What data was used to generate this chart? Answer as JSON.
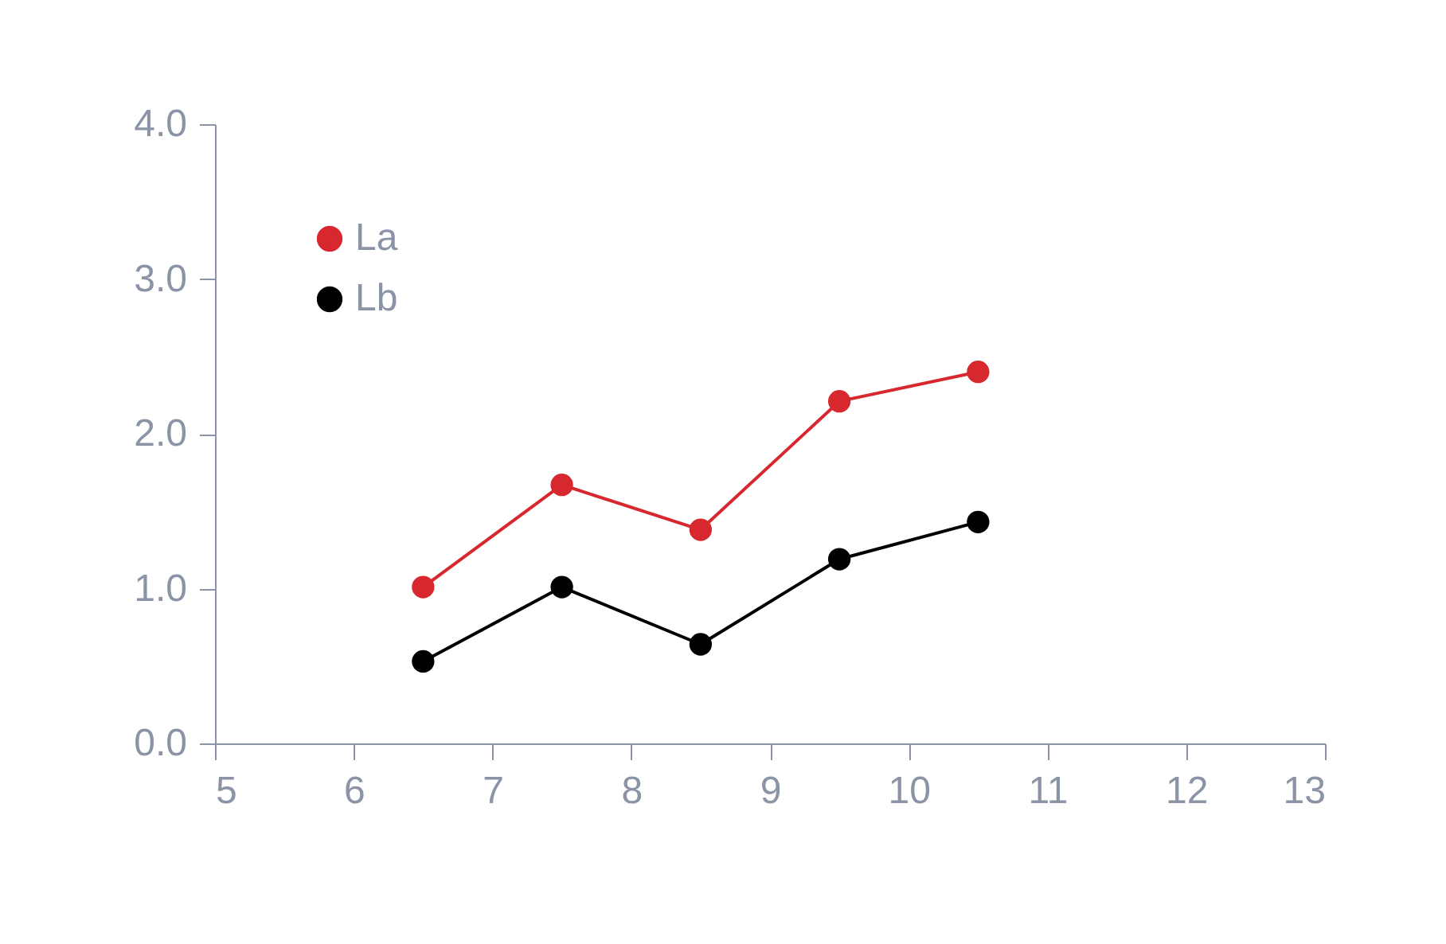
{
  "chart_data": {
    "type": "line",
    "x": [
      6.5,
      7.5,
      8.5,
      9.5,
      10.5
    ],
    "series": [
      {
        "name": "La",
        "color": "#d7282f",
        "values": [
          1.01,
          1.67,
          1.38,
          2.21,
          2.4
        ]
      },
      {
        "name": "Lb",
        "color": "#000000",
        "values": [
          0.53,
          1.01,
          0.64,
          1.19,
          1.43
        ]
      }
    ],
    "xlim": [
      5,
      13
    ],
    "xticks": [
      5,
      6,
      7,
      8,
      9,
      10,
      11,
      12,
      13
    ],
    "ylim": [
      0,
      4
    ],
    "yticks": [
      {
        "value": 0,
        "label": "0.0"
      },
      {
        "value": 1,
        "label": "1.0"
      },
      {
        "value": 2,
        "label": "2.0"
      },
      {
        "value": 3,
        "label": "3.0"
      },
      {
        "value": 4,
        "label": "4.0"
      }
    ],
    "grid": false,
    "legend": "top left",
    "marker": "circle",
    "line_style": "solid"
  }
}
